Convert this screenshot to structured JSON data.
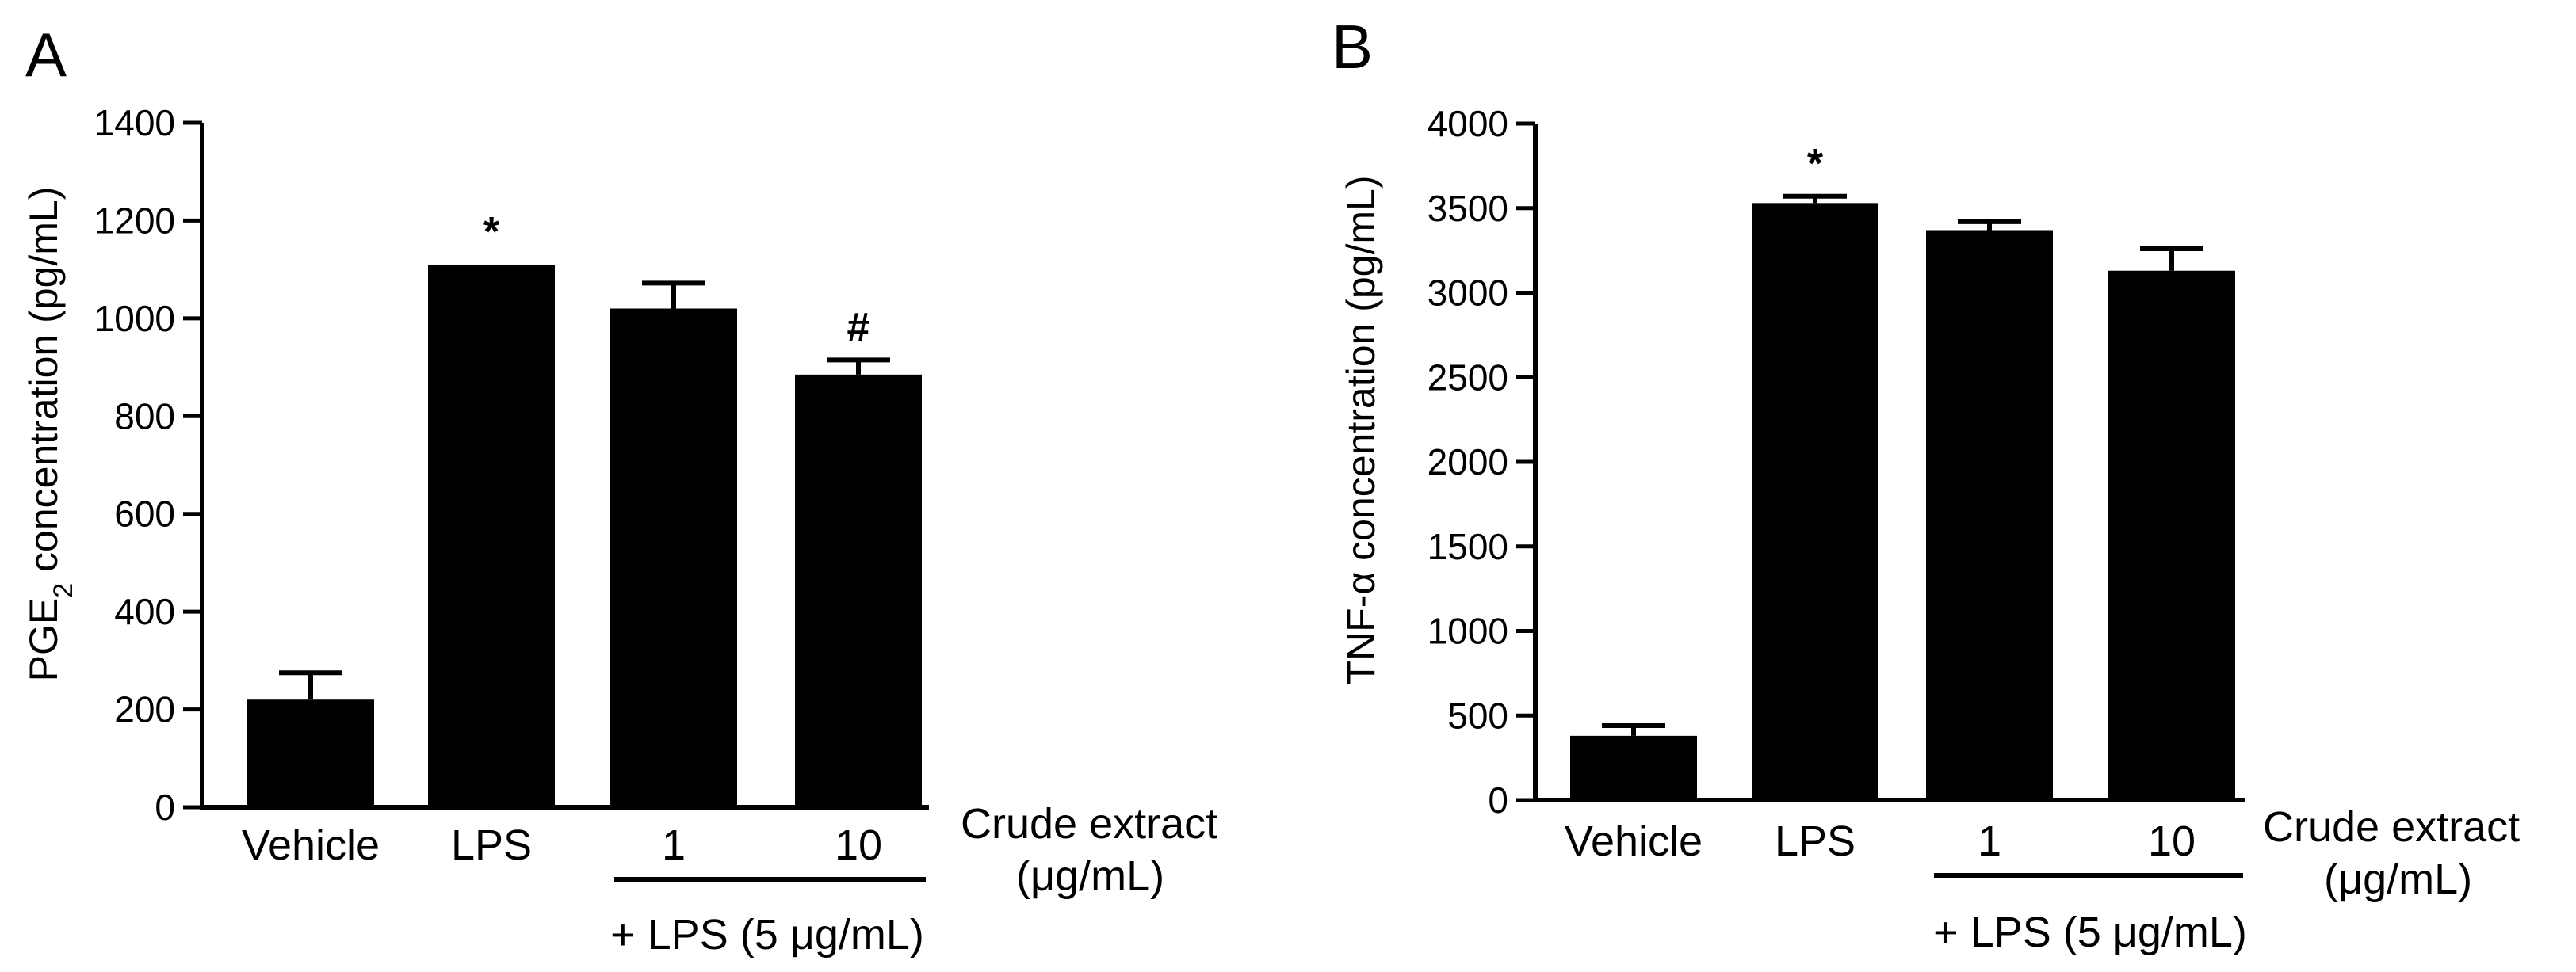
{
  "figure": {
    "background": "#ffffff",
    "bar_color": "#000000"
  },
  "chart_data": [
    {
      "panel": "A",
      "type": "bar",
      "ylabel_main": "PGE",
      "ylabel_sub": "2",
      "ylabel_rest": " concentration (pg/mL)",
      "ylim": [
        0,
        1400
      ],
      "yticks": [
        0,
        200,
        400,
        600,
        800,
        1000,
        1200,
        1400
      ],
      "categories": [
        "Vehicle",
        "LPS",
        "1",
        "10"
      ],
      "values": [
        220,
        1110,
        1020,
        885
      ],
      "errors": [
        55,
        0,
        52,
        30
      ],
      "significance": [
        "",
        "*",
        "",
        "#"
      ],
      "side_label_line1": "Crude extract",
      "side_label_line2": "(μg/mL)",
      "group_label": "+ LPS (5 μg/mL)"
    },
    {
      "panel": "B",
      "type": "bar",
      "ylabel_main": "TNF-α concentration (pg/mL)",
      "ylim": [
        0,
        4000
      ],
      "yticks": [
        0,
        500,
        1000,
        1500,
        2000,
        2500,
        3000,
        3500,
        4000
      ],
      "categories": [
        "Vehicle",
        "LPS",
        "1",
        "10"
      ],
      "values": [
        380,
        3530,
        3370,
        3130
      ],
      "errors": [
        60,
        40,
        50,
        130
      ],
      "significance": [
        "",
        "*",
        "",
        ""
      ],
      "side_label_line1": "Crude extract",
      "side_label_line2": "(μg/mL)",
      "group_label": "+ LPS (5 μg/mL)"
    }
  ]
}
